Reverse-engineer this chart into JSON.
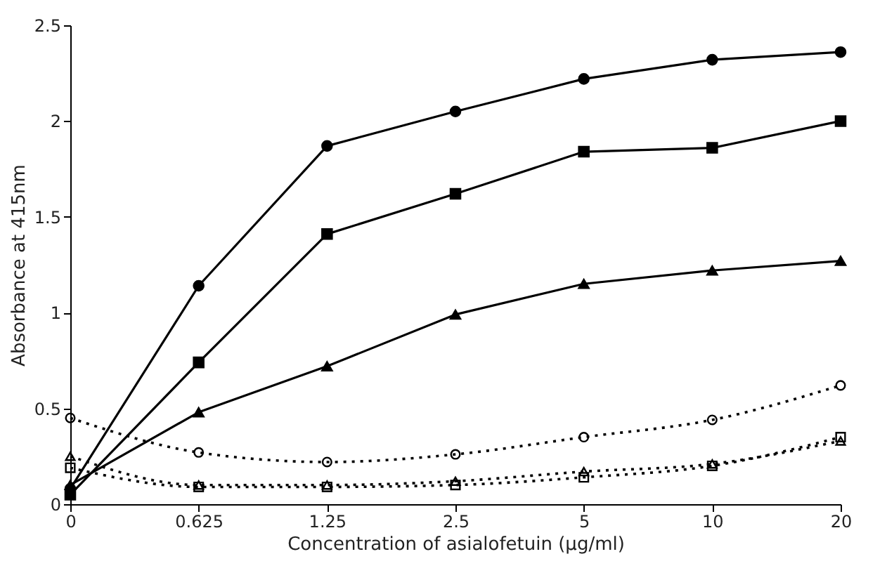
{
  "chart_data": {
    "type": "line",
    "xlabel": "Concentration of asialofetuin (μg/ml)",
    "ylabel": "Absorbance at 415nm",
    "categories": [
      "0",
      "0.625",
      "1.25",
      "2.5",
      "5",
      "10",
      "20"
    ],
    "series": [
      {
        "color": "#000000",
        "marker": "circle",
        "line_style": "solid",
        "values": [
          0.08,
          1.14,
          1.87,
          2.05,
          2.22,
          2.32,
          2.36
        ]
      },
      {
        "color": "#000000",
        "marker": "square",
        "line_style": "solid",
        "values": [
          0.05,
          0.74,
          1.41,
          1.62,
          1.84,
          1.86,
          2.0
        ]
      },
      {
        "color": "#000000",
        "marker": "triangle",
        "line_style": "solid",
        "values": [
          0.1,
          0.48,
          0.72,
          0.99,
          1.15,
          1.22,
          1.27
        ]
      },
      {
        "color": "#000000",
        "marker": "circle",
        "line_style": "dotted",
        "values": [
          0.45,
          0.27,
          0.22,
          0.26,
          0.35,
          0.44,
          0.62
        ]
      },
      {
        "color": "#000000",
        "marker": "square",
        "line_style": "dotted",
        "values": [
          0.19,
          0.09,
          0.09,
          0.1,
          0.14,
          0.2,
          0.35
        ]
      },
      {
        "color": "#000000",
        "marker": "triangle",
        "line_style": "dotted",
        "values": [
          0.25,
          0.1,
          0.1,
          0.12,
          0.17,
          0.21,
          0.33
        ]
      }
    ],
    "ylim": [
      0,
      2.5
    ],
    "yticks": [
      0,
      0.5,
      1,
      1.5,
      2,
      2.5
    ],
    "grid": false,
    "legend": false
  }
}
